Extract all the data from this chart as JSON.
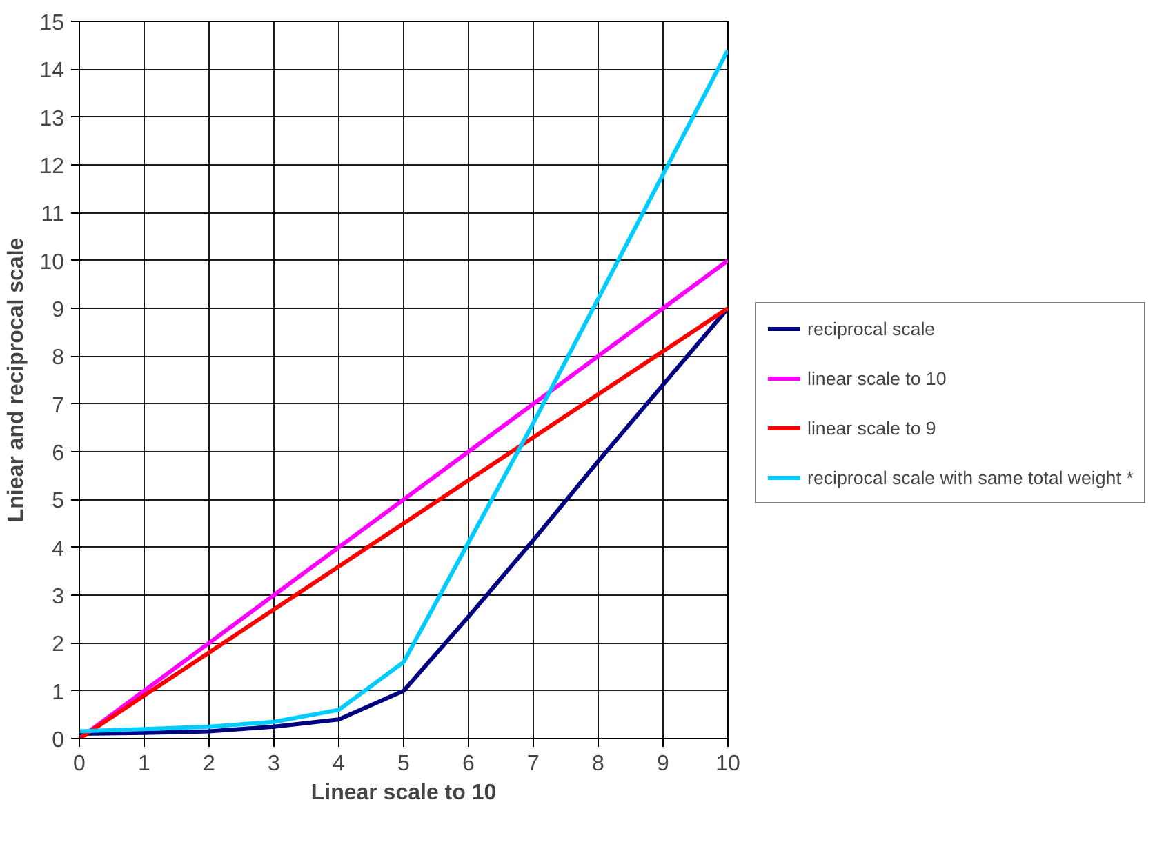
{
  "chart_data": {
    "type": "line",
    "xlabel": "Linear scale to 10",
    "ylabel": "Lniear and reciprocal scale",
    "x": [
      0,
      1,
      2,
      3,
      4,
      5,
      6,
      7,
      8,
      9,
      10
    ],
    "series": [
      {
        "name": "reciprocal scale",
        "color": "#000080",
        "values": [
          0.1,
          0.12,
          0.15,
          0.25,
          0.4,
          1,
          2.55,
          4.15,
          5.8,
          7.4,
          9
        ]
      },
      {
        "name": "linear scale to 10",
        "color": "#ff00ff",
        "values": [
          0,
          1,
          2,
          3,
          4,
          5,
          6,
          7,
          8,
          9,
          10
        ]
      },
      {
        "name": "linear scale to 9",
        "color": "#ff0000",
        "values": [
          0,
          0.9,
          1.8,
          2.7,
          3.6,
          4.5,
          5.4,
          6.3,
          7.2,
          8.1,
          9
        ]
      },
      {
        "name": "reciprocal scale with same total weight *",
        "color": "#00ccff",
        "values": [
          0.15,
          0.2,
          0.25,
          0.35,
          0.6,
          1.6,
          4.1,
          6.6,
          9.2,
          11.8,
          14.4
        ]
      }
    ],
    "xlim": [
      0,
      10
    ],
    "ylim": [
      0,
      15
    ],
    "xticks": [
      0,
      1,
      2,
      3,
      4,
      5,
      6,
      7,
      8,
      9,
      10
    ],
    "yticks": [
      0,
      1,
      2,
      3,
      4,
      5,
      6,
      7,
      8,
      9,
      10,
      11,
      12,
      13,
      14,
      15
    ],
    "grid": true,
    "legend": "right",
    "marker": "none",
    "line_style": "solid"
  }
}
